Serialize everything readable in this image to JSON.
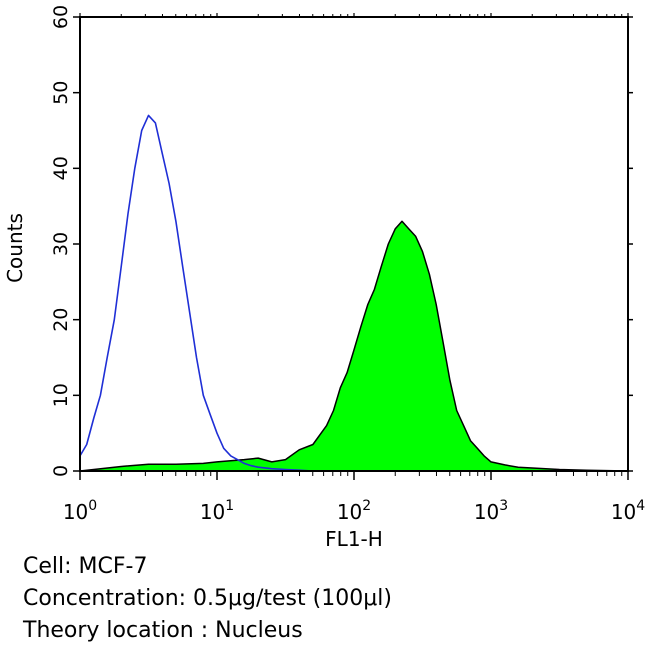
{
  "chart_data": {
    "type": "area",
    "title": "",
    "xlabel": "FL1-H",
    "ylabel": "Counts",
    "xscale": "log",
    "xlim": [
      1,
      10000
    ],
    "ylim": [
      0,
      60
    ],
    "x_ticks": [
      {
        "value": 1,
        "base": "10",
        "exp": "0"
      },
      {
        "value": 10,
        "base": "10",
        "exp": "1"
      },
      {
        "value": 100,
        "base": "10",
        "exp": "2"
      },
      {
        "value": 1000,
        "base": "10",
        "exp": "3"
      },
      {
        "value": 10000,
        "base": "10",
        "exp": "4"
      }
    ],
    "y_ticks": [
      0,
      10,
      20,
      30,
      40,
      50,
      60
    ],
    "series": [
      {
        "style": "outline",
        "color": "#1f2fd6",
        "points": [
          [
            1.0,
            2
          ],
          [
            1.12,
            3.5
          ],
          [
            1.26,
            7
          ],
          [
            1.41,
            10
          ],
          [
            1.58,
            15
          ],
          [
            1.78,
            20
          ],
          [
            2.0,
            27
          ],
          [
            2.24,
            34
          ],
          [
            2.51,
            40
          ],
          [
            2.82,
            45
          ],
          [
            3.16,
            47
          ],
          [
            3.55,
            46
          ],
          [
            3.98,
            42
          ],
          [
            4.47,
            38
          ],
          [
            5.01,
            33
          ],
          [
            5.62,
            27
          ],
          [
            6.31,
            21
          ],
          [
            7.08,
            15
          ],
          [
            7.94,
            10
          ],
          [
            8.91,
            7.5
          ],
          [
            10.0,
            5
          ],
          [
            11.2,
            3
          ],
          [
            12.6,
            2
          ],
          [
            14.1,
            1.5
          ],
          [
            15.8,
            1
          ],
          [
            17.8,
            0.7
          ],
          [
            20.0,
            0.5
          ],
          [
            25.1,
            0.3
          ],
          [
            31.6,
            0.2
          ],
          [
            39.8,
            0.1
          ],
          [
            50.1,
            0
          ]
        ]
      },
      {
        "style": "filled",
        "color": "#00ff00",
        "points": [
          [
            1.0,
            0
          ],
          [
            2.0,
            0.6
          ],
          [
            3.16,
            0.9
          ],
          [
            5.01,
            0.9
          ],
          [
            7.94,
            1.0
          ],
          [
            10.0,
            1.2
          ],
          [
            15.8,
            1.5
          ],
          [
            20.0,
            1.7
          ],
          [
            25.1,
            1.2
          ],
          [
            31.6,
            1.5
          ],
          [
            39.8,
            2.8
          ],
          [
            50.1,
            3.5
          ],
          [
            63.1,
            6
          ],
          [
            70.8,
            8
          ],
          [
            79.4,
            11
          ],
          [
            89.1,
            13
          ],
          [
            100,
            16
          ],
          [
            112,
            19
          ],
          [
            126,
            22
          ],
          [
            141,
            24
          ],
          [
            158,
            27
          ],
          [
            178,
            30
          ],
          [
            200,
            32
          ],
          [
            224,
            33
          ],
          [
            251,
            32
          ],
          [
            282,
            31
          ],
          [
            316,
            29
          ],
          [
            355,
            26
          ],
          [
            398,
            22
          ],
          [
            447,
            17
          ],
          [
            501,
            12
          ],
          [
            562,
            8
          ],
          [
            631,
            6
          ],
          [
            708,
            4
          ],
          [
            794,
            3
          ],
          [
            891,
            2
          ],
          [
            1000,
            1.2
          ],
          [
            1260,
            0.8
          ],
          [
            1580,
            0.5
          ],
          [
            2000,
            0.4
          ],
          [
            2510,
            0.3
          ],
          [
            3160,
            0.2
          ],
          [
            5010,
            0.1
          ],
          [
            10000,
            0
          ]
        ]
      }
    ]
  },
  "caption": {
    "cell": "Cell: MCF-7",
    "concentration": "Concentration: 0.5μg/test (100μl)",
    "location": "Theory location : Nucleus"
  }
}
